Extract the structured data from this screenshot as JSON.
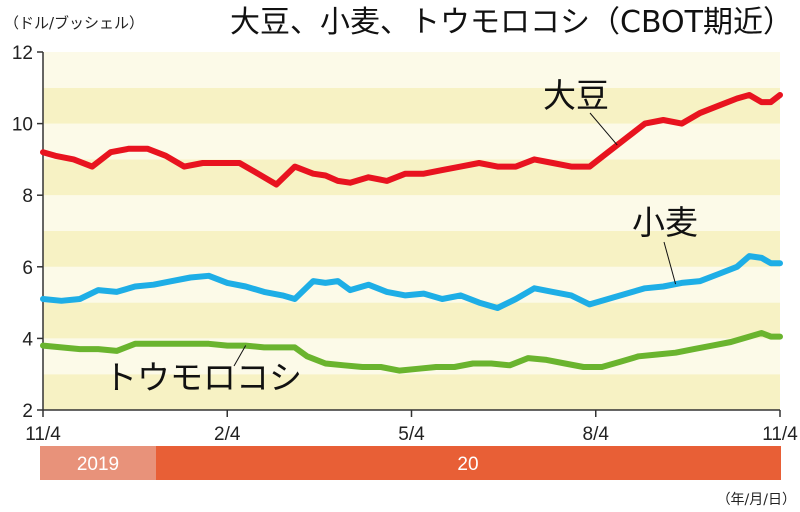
{
  "title": "大豆、小麦、トウモロコシ（CBOT期近）",
  "unit_label": "（ドル/ブッシェル）",
  "date_note": "（年/月/日）",
  "year_band": [
    {
      "label": "2019",
      "color": "#e8927a"
    },
    {
      "label": "20",
      "color": "#e85f36"
    }
  ],
  "colors": {
    "band_dark": "#f7f2c4",
    "band_light": "#fcfae8",
    "axis": "#333333"
  },
  "chart_data": {
    "type": "line",
    "title": "大豆、小麦、トウモロコシ（CBOT期近）",
    "ylabel": "（ドル/ブッシェル）",
    "xlabel": "（年/月/日）",
    "ylim": [
      2,
      12
    ],
    "y_ticks": [
      "2",
      "4",
      "6",
      "8",
      "10",
      "12"
    ],
    "x_ticks": [
      "11/4",
      "2/4",
      "5/4",
      "8/4",
      "11/4"
    ],
    "x_range_months": [
      0,
      12
    ],
    "x_tick_positions": [
      0,
      3,
      6,
      9,
      12
    ],
    "grid": "horizontal bands",
    "series": [
      {
        "name": "大豆",
        "color": "#e8131f",
        "x": [
          0,
          0.2,
          0.5,
          0.8,
          1.1,
          1.4,
          1.7,
          2.0,
          2.3,
          2.6,
          2.9,
          3.2,
          3.5,
          3.8,
          4.1,
          4.4,
          4.6,
          4.8,
          5.0,
          5.3,
          5.6,
          5.9,
          6.2,
          6.5,
          6.8,
          7.1,
          7.4,
          7.7,
          8.0,
          8.3,
          8.6,
          8.9,
          9.2,
          9.5,
          9.8,
          10.1,
          10.4,
          10.7,
          11.0,
          11.3,
          11.5,
          11.7,
          11.85,
          12.0
        ],
        "values": [
          9.2,
          9.1,
          9.0,
          8.8,
          9.2,
          9.3,
          9.3,
          9.1,
          8.8,
          8.9,
          8.9,
          8.9,
          8.6,
          8.3,
          8.8,
          8.6,
          8.55,
          8.4,
          8.35,
          8.5,
          8.4,
          8.6,
          8.6,
          8.7,
          8.8,
          8.9,
          8.8,
          8.8,
          9.0,
          8.9,
          8.8,
          8.8,
          9.2,
          9.6,
          10.0,
          10.1,
          10.0,
          10.3,
          10.5,
          10.7,
          10.8,
          10.6,
          10.6,
          10.8
        ]
      },
      {
        "name": "小麦",
        "color": "#1eaee6",
        "x": [
          0,
          0.3,
          0.6,
          0.9,
          1.2,
          1.5,
          1.8,
          2.1,
          2.4,
          2.7,
          3.0,
          3.3,
          3.6,
          3.9,
          4.1,
          4.4,
          4.6,
          4.8,
          5.0,
          5.3,
          5.6,
          5.9,
          6.2,
          6.5,
          6.8,
          7.1,
          7.4,
          7.7,
          8.0,
          8.3,
          8.6,
          8.9,
          9.2,
          9.5,
          9.8,
          10.1,
          10.4,
          10.7,
          11.0,
          11.3,
          11.5,
          11.7,
          11.85,
          12.0
        ],
        "values": [
          5.1,
          5.05,
          5.1,
          5.35,
          5.3,
          5.45,
          5.5,
          5.6,
          5.7,
          5.75,
          5.55,
          5.45,
          5.3,
          5.2,
          5.1,
          5.6,
          5.55,
          5.6,
          5.35,
          5.5,
          5.3,
          5.2,
          5.25,
          5.1,
          5.2,
          5.0,
          4.85,
          5.1,
          5.4,
          5.3,
          5.2,
          4.95,
          5.1,
          5.25,
          5.4,
          5.45,
          5.55,
          5.6,
          5.8,
          6.0,
          6.3,
          6.25,
          6.1,
          6.1
        ]
      },
      {
        "name": "トウモロコシ",
        "color": "#6ab42e",
        "x": [
          0,
          0.3,
          0.6,
          0.9,
          1.2,
          1.5,
          1.8,
          2.1,
          2.4,
          2.7,
          3.0,
          3.3,
          3.6,
          3.9,
          4.1,
          4.3,
          4.6,
          4.9,
          5.2,
          5.5,
          5.8,
          6.1,
          6.4,
          6.7,
          7.0,
          7.3,
          7.6,
          7.9,
          8.2,
          8.5,
          8.8,
          9.1,
          9.4,
          9.7,
          10.0,
          10.3,
          10.6,
          10.9,
          11.2,
          11.5,
          11.7,
          11.85,
          12.0
        ],
        "values": [
          3.8,
          3.75,
          3.7,
          3.7,
          3.65,
          3.85,
          3.85,
          3.85,
          3.85,
          3.85,
          3.8,
          3.8,
          3.75,
          3.75,
          3.75,
          3.5,
          3.3,
          3.25,
          3.2,
          3.2,
          3.1,
          3.15,
          3.2,
          3.2,
          3.3,
          3.3,
          3.25,
          3.45,
          3.4,
          3.3,
          3.2,
          3.2,
          3.35,
          3.5,
          3.55,
          3.6,
          3.7,
          3.8,
          3.9,
          4.05,
          4.15,
          4.05,
          4.05
        ]
      }
    ]
  }
}
